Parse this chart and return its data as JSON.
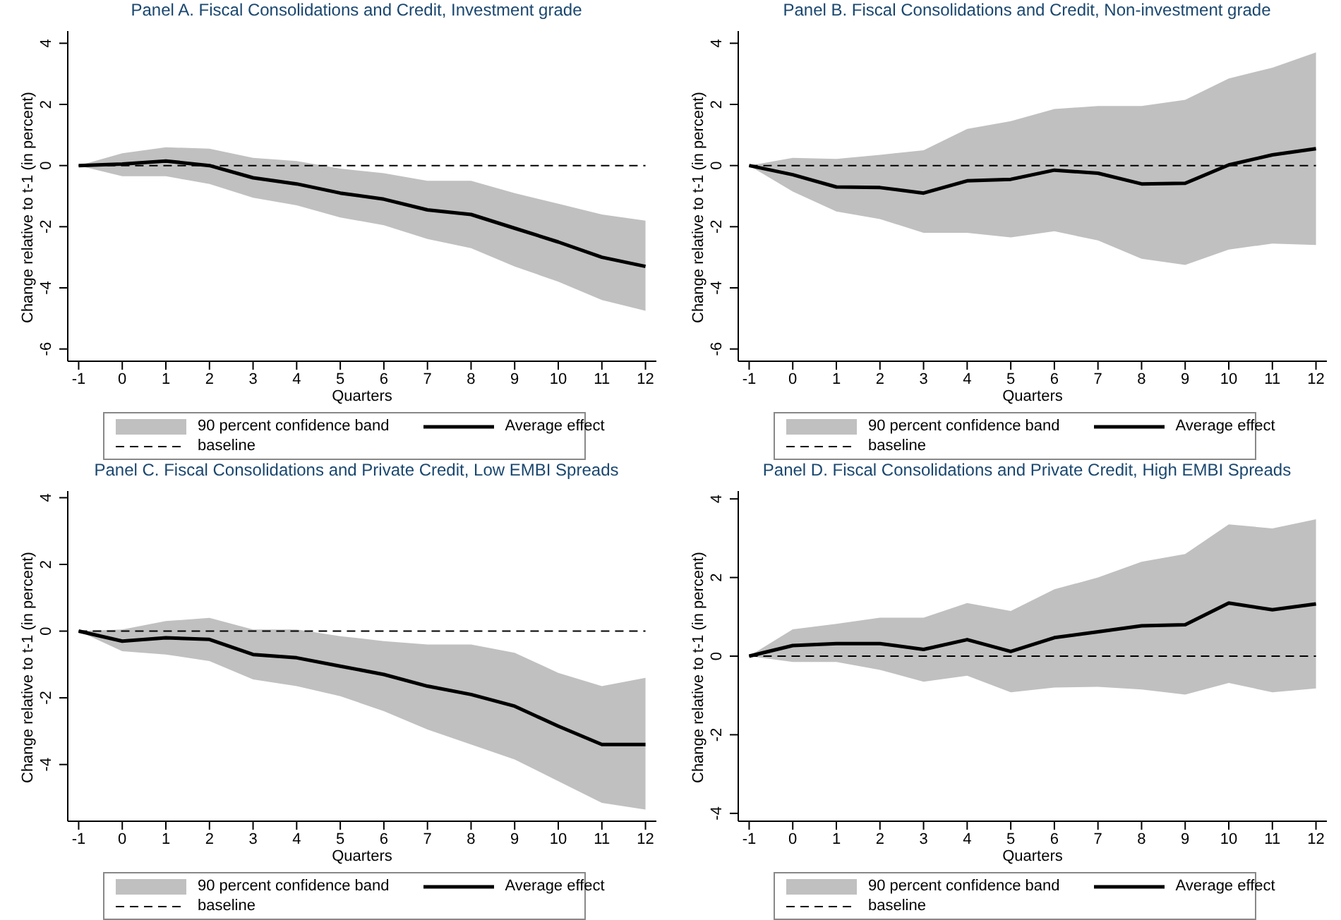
{
  "chart_data": [
    {
      "type": "line",
      "title": "Panel A. Fiscal Consolidations and Credit, Investment grade",
      "xlabel": "Quarters",
      "ylabel": "Change relative to t-1 (in percent)",
      "x": [
        -1,
        0,
        1,
        2,
        3,
        4,
        5,
        6,
        7,
        8,
        9,
        10,
        11,
        12
      ],
      "xlim": [
        -1.25,
        12.25
      ],
      "xticks": [
        -1,
        0,
        1,
        2,
        3,
        4,
        5,
        6,
        7,
        8,
        9,
        10,
        11,
        12
      ],
      "ylim": [
        -6.4,
        4.4
      ],
      "yticks": [
        -6,
        -4,
        -2,
        0,
        2,
        4
      ],
      "legend": "bottom",
      "series": [
        {
          "name": "90 percent confidence band",
          "type": "area",
          "color": "#c0c0c0",
          "values": [
            null,
            null,
            null,
            null,
            null,
            null,
            null,
            null,
            null,
            null,
            null,
            null,
            null,
            null
          ],
          "lower": [
            0,
            -0.35,
            -0.35,
            -0.6,
            -1.05,
            -1.3,
            -1.7,
            -1.95,
            -2.4,
            -2.7,
            -3.3,
            -3.8,
            -4.4,
            -4.75
          ],
          "upper": [
            0,
            0.4,
            0.6,
            0.55,
            0.25,
            0.15,
            -0.1,
            -0.25,
            -0.5,
            -0.5,
            -0.9,
            -1.25,
            -1.6,
            -1.8
          ]
        },
        {
          "name": "Average effect",
          "type": "line",
          "color": "#000000",
          "line_style": "solid",
          "values": [
            0,
            0.05,
            0.15,
            0,
            -0.4,
            -0.6,
            -0.9,
            -1.1,
            -1.45,
            -1.6,
            -2.05,
            -2.5,
            -3.0,
            -3.3
          ]
        },
        {
          "name": "baseline",
          "type": "line",
          "color": "#000000",
          "line_style": "dashed",
          "values": [
            0,
            0,
            0,
            0,
            0,
            0,
            0,
            0,
            0,
            0,
            0,
            0,
            0,
            0
          ]
        }
      ]
    },
    {
      "type": "line",
      "title": "Panel B. Fiscal Consolidations and Credit, Non-investment grade",
      "xlabel": "Quarters",
      "ylabel": "Change relative to t-1 (in percent)",
      "x": [
        -1,
        0,
        1,
        2,
        3,
        4,
        5,
        6,
        7,
        8,
        9,
        10,
        11,
        12
      ],
      "xlim": [
        -1.25,
        12.25
      ],
      "xticks": [
        -1,
        0,
        1,
        2,
        3,
        4,
        5,
        6,
        7,
        8,
        9,
        10,
        11,
        12
      ],
      "ylim": [
        -6.4,
        4.4
      ],
      "yticks": [
        -6,
        -4,
        -2,
        0,
        2,
        4
      ],
      "legend": "bottom",
      "series": [
        {
          "name": "90 percent confidence band",
          "type": "area",
          "color": "#c0c0c0",
          "values": [
            null,
            null,
            null,
            null,
            null,
            null,
            null,
            null,
            null,
            null,
            null,
            null,
            null,
            null
          ],
          "lower": [
            0,
            -0.85,
            -1.5,
            -1.75,
            -2.2,
            -2.2,
            -2.35,
            -2.15,
            -2.45,
            -3.05,
            -3.25,
            -2.75,
            -2.55,
            -2.6
          ],
          "upper": [
            0,
            0.25,
            0.22,
            0.35,
            0.5,
            1.2,
            1.45,
            1.85,
            1.95,
            1.95,
            2.15,
            2.85,
            3.2,
            3.7
          ]
        },
        {
          "name": "Average effect",
          "type": "line",
          "color": "#000000",
          "line_style": "solid",
          "values": [
            0,
            -0.3,
            -0.7,
            -0.72,
            -0.9,
            -0.5,
            -0.45,
            -0.15,
            -0.25,
            -0.6,
            -0.58,
            0.02,
            0.35,
            0.55
          ]
        },
        {
          "name": "baseline",
          "type": "line",
          "color": "#000000",
          "line_style": "dashed",
          "values": [
            0,
            0,
            0,
            0,
            0,
            0,
            0,
            0,
            0,
            0,
            0,
            0,
            0,
            0
          ]
        }
      ]
    },
    {
      "type": "line",
      "title": "Panel C. Fiscal Consolidations and Private Credit, Low EMBI Spreads",
      "xlabel": "Quarters",
      "ylabel": "Change relative to t-1 (in percent)",
      "x": [
        -1,
        0,
        1,
        2,
        3,
        4,
        5,
        6,
        7,
        8,
        9,
        10,
        11,
        12
      ],
      "xlim": [
        -1.25,
        12.25
      ],
      "xticks": [
        -1,
        0,
        1,
        2,
        3,
        4,
        5,
        6,
        7,
        8,
        9,
        10,
        11,
        12
      ],
      "ylim": [
        -5.7,
        4.2
      ],
      "yticks": [
        -4,
        -2,
        0,
        2,
        4
      ],
      "legend": "bottom",
      "series": [
        {
          "name": "90 percent confidence band",
          "type": "area",
          "color": "#c0c0c0",
          "values": [
            null,
            null,
            null,
            null,
            null,
            null,
            null,
            null,
            null,
            null,
            null,
            null,
            null,
            null
          ],
          "lower": [
            0,
            -0.6,
            -0.7,
            -0.9,
            -1.45,
            -1.65,
            -1.95,
            -2.4,
            -2.95,
            -3.4,
            -3.85,
            -4.5,
            -5.15,
            -5.35
          ],
          "upper": [
            0,
            0.05,
            0.3,
            0.4,
            0.05,
            0.05,
            -0.15,
            -0.3,
            -0.4,
            -0.4,
            -0.65,
            -1.25,
            -1.65,
            -1.4
          ]
        },
        {
          "name": "Average effect",
          "type": "line",
          "color": "#000000",
          "line_style": "solid",
          "values": [
            0,
            -0.3,
            -0.2,
            -0.25,
            -0.7,
            -0.8,
            -1.05,
            -1.3,
            -1.65,
            -1.9,
            -2.25,
            -2.85,
            -3.4,
            -3.4
          ]
        },
        {
          "name": "baseline",
          "type": "line",
          "color": "#000000",
          "line_style": "dashed",
          "values": [
            0,
            0,
            0,
            0,
            0,
            0,
            0,
            0,
            0,
            0,
            0,
            0,
            0,
            0
          ]
        }
      ]
    },
    {
      "type": "line",
      "title": "Panel D. Fiscal Consolidations and Private Credit, High EMBI Spreads",
      "xlabel": "Quarters",
      "ylabel": "Change relative to t-1 (in percent)",
      "x": [
        -1,
        0,
        1,
        2,
        3,
        4,
        5,
        6,
        7,
        8,
        9,
        10,
        11,
        12
      ],
      "xlim": [
        -1.25,
        12.25
      ],
      "xticks": [
        -1,
        0,
        1,
        2,
        3,
        4,
        5,
        6,
        7,
        8,
        9,
        10,
        11,
        12
      ],
      "ylim": [
        -4.2,
        4.2
      ],
      "yticks": [
        -4,
        -2,
        0,
        2,
        4
      ],
      "legend": "bottom",
      "series": [
        {
          "name": "90 percent confidence band",
          "type": "area",
          "color": "#c0c0c0",
          "values": [
            null,
            null,
            null,
            null,
            null,
            null,
            null,
            null,
            null,
            null,
            null,
            null,
            null,
            null
          ],
          "lower": [
            0,
            -0.15,
            -0.15,
            -0.35,
            -0.65,
            -0.5,
            -0.92,
            -0.8,
            -0.78,
            -0.85,
            -0.98,
            -0.68,
            -0.92,
            -0.82
          ],
          "upper": [
            0,
            0.68,
            0.82,
            0.98,
            0.98,
            1.35,
            1.15,
            1.7,
            2.0,
            2.4,
            2.6,
            3.35,
            3.25,
            3.48
          ]
        },
        {
          "name": "Average effect",
          "type": "line",
          "color": "#000000",
          "line_style": "solid",
          "values": [
            0,
            0.27,
            0.32,
            0.32,
            0.17,
            0.42,
            0.12,
            0.47,
            0.62,
            0.77,
            0.8,
            1.35,
            1.18,
            1.33
          ]
        },
        {
          "name": "baseline",
          "type": "line",
          "color": "#000000",
          "line_style": "dashed",
          "values": [
            0,
            0,
            0,
            0,
            0,
            0,
            0,
            0,
            0,
            0,
            0,
            0,
            0,
            0
          ]
        }
      ]
    }
  ]
}
